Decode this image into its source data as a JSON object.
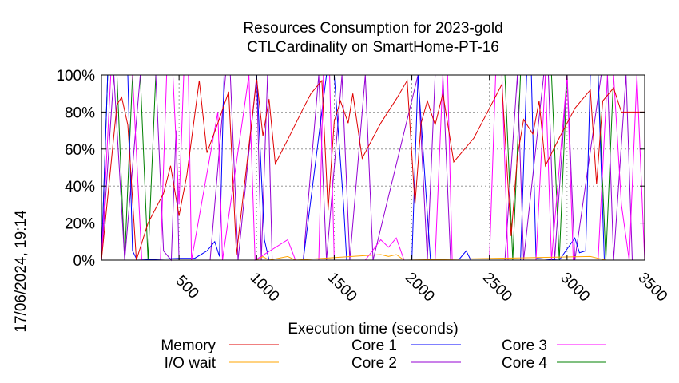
{
  "side_label": "17/06/2024, 19:14",
  "chart_data": {
    "type": "line",
    "title": [
      "Resources Consumption for 2023-gold",
      "CTLCardinality on SmartHome-PT-16"
    ],
    "xlabel": "Execution time (seconds)",
    "ylabel": "",
    "xlim": [
      0,
      3500
    ],
    "ylim": [
      0,
      100
    ],
    "x_ticks": [
      500,
      1000,
      1500,
      2000,
      2500,
      3000,
      3500
    ],
    "y_ticks": [
      0,
      20,
      40,
      60,
      80,
      100
    ],
    "y_tick_labels": [
      "0%",
      "20%",
      "40%",
      "60%",
      "80%",
      "100%"
    ],
    "grid": true,
    "legend_position": "bottom",
    "series": [
      {
        "name": "Memory",
        "color": "#e00000",
        "points": [
          [
            0,
            0
          ],
          [
            100,
            84
          ],
          [
            130,
            88
          ],
          [
            170,
            73
          ],
          [
            225,
            0
          ],
          [
            300,
            20
          ],
          [
            400,
            36
          ],
          [
            445,
            51
          ],
          [
            500,
            24
          ],
          [
            550,
            46
          ],
          [
            630,
            97
          ],
          [
            680,
            58
          ],
          [
            750,
            74
          ],
          [
            820,
            91
          ],
          [
            870,
            3
          ],
          [
            1000,
            98
          ],
          [
            1040,
            67
          ],
          [
            1080,
            87
          ],
          [
            1120,
            52
          ],
          [
            1200,
            65
          ],
          [
            1300,
            82
          ],
          [
            1350,
            90
          ],
          [
            1420,
            97
          ],
          [
            1460,
            27
          ],
          [
            1500,
            75
          ],
          [
            1540,
            86
          ],
          [
            1590,
            74
          ],
          [
            1620,
            90
          ],
          [
            1680,
            55
          ],
          [
            1800,
            74
          ],
          [
            1900,
            87
          ],
          [
            1970,
            97
          ],
          [
            2020,
            30
          ],
          [
            2060,
            74
          ],
          [
            2100,
            86
          ],
          [
            2150,
            73
          ],
          [
            2200,
            90
          ],
          [
            2270,
            53
          ],
          [
            2400,
            66
          ],
          [
            2500,
            82
          ],
          [
            2580,
            95
          ],
          [
            2640,
            13
          ],
          [
            2680,
            56
          ],
          [
            2720,
            76
          ],
          [
            2780,
            68
          ],
          [
            2820,
            86
          ],
          [
            2860,
            51
          ],
          [
            2950,
            66
          ],
          [
            3050,
            82
          ],
          [
            3150,
            92
          ],
          [
            3190,
            41
          ],
          [
            3230,
            86
          ],
          [
            3300,
            93
          ],
          [
            3350,
            80
          ],
          [
            3500,
            80
          ]
        ]
      },
      {
        "name": "I/O wait",
        "color": "#ffa500",
        "points": [
          [
            0,
            0
          ],
          [
            1000,
            0
          ],
          [
            1040,
            2
          ],
          [
            1080,
            0
          ],
          [
            1200,
            2
          ],
          [
            1250,
            0
          ],
          [
            1800,
            3
          ],
          [
            1850,
            2
          ],
          [
            1900,
            3
          ],
          [
            1950,
            0
          ],
          [
            3150,
            2
          ],
          [
            3200,
            1
          ],
          [
            3250,
            0
          ],
          [
            3500,
            0
          ]
        ]
      },
      {
        "name": "Core 1",
        "color": "#0000ff",
        "points": [
          [
            0,
            0
          ],
          [
            40,
            100
          ],
          [
            170,
            100
          ],
          [
            200,
            5
          ],
          [
            230,
            0
          ],
          [
            500,
            1
          ],
          [
            600,
            1
          ],
          [
            680,
            5
          ],
          [
            730,
            10
          ],
          [
            760,
            2
          ],
          [
            790,
            100
          ],
          [
            1000,
            100
          ],
          [
            1050,
            11
          ],
          [
            1080,
            0
          ],
          [
            1300,
            0
          ],
          [
            1450,
            100
          ],
          [
            1500,
            100
          ],
          [
            1560,
            30
          ],
          [
            1580,
            0
          ],
          [
            2000,
            0
          ],
          [
            2040,
            100
          ],
          [
            2120,
            0
          ],
          [
            2300,
            0
          ],
          [
            2350,
            5
          ],
          [
            2380,
            0
          ],
          [
            2700,
            0
          ],
          [
            2740,
            100
          ],
          [
            2770,
            100
          ],
          [
            2800,
            1
          ],
          [
            2950,
            0
          ],
          [
            3050,
            12
          ],
          [
            3080,
            4
          ],
          [
            3120,
            5
          ],
          [
            3150,
            100
          ],
          [
            3200,
            100
          ],
          [
            3240,
            0
          ],
          [
            3500,
            0
          ]
        ]
      },
      {
        "name": "Core 2",
        "color": "#9400d3",
        "points": [
          [
            0,
            0
          ],
          [
            80,
            100
          ],
          [
            150,
            0
          ],
          [
            250,
            100
          ],
          [
            350,
            100
          ],
          [
            400,
            5
          ],
          [
            450,
            0
          ],
          [
            480,
            70
          ],
          [
            500,
            0
          ],
          [
            700,
            0
          ],
          [
            800,
            100
          ],
          [
            830,
            100
          ],
          [
            880,
            0
          ],
          [
            1000,
            100
          ],
          [
            1030,
            0
          ],
          [
            1070,
            100
          ],
          [
            1100,
            0
          ],
          [
            1300,
            0
          ],
          [
            1400,
            100
          ],
          [
            1450,
            0
          ],
          [
            1550,
            100
          ],
          [
            1600,
            0
          ],
          [
            1700,
            100
          ],
          [
            1750,
            0
          ],
          [
            2040,
            100
          ],
          [
            2100,
            0
          ],
          [
            2150,
            100
          ],
          [
            2200,
            100
          ],
          [
            2250,
            0
          ],
          [
            2600,
            0
          ],
          [
            2680,
            100
          ],
          [
            2720,
            0
          ],
          [
            2850,
            100
          ],
          [
            2880,
            100
          ],
          [
            2920,
            0
          ],
          [
            3000,
            100
          ],
          [
            3050,
            0
          ],
          [
            3220,
            100
          ],
          [
            3260,
            100
          ],
          [
            3300,
            0
          ],
          [
            3380,
            100
          ],
          [
            3420,
            0
          ],
          [
            3500,
            0
          ]
        ]
      },
      {
        "name": "Core 3",
        "color": "#ff00ff",
        "points": [
          [
            0,
            0
          ],
          [
            60,
            100
          ],
          [
            200,
            100
          ],
          [
            260,
            0
          ],
          [
            380,
            0
          ],
          [
            420,
            100
          ],
          [
            460,
            100
          ],
          [
            500,
            30
          ],
          [
            530,
            100
          ],
          [
            560,
            100
          ],
          [
            580,
            0
          ],
          [
            750,
            80
          ],
          [
            780,
            0
          ],
          [
            950,
            100
          ],
          [
            990,
            0
          ],
          [
            1200,
            11
          ],
          [
            1250,
            0
          ],
          [
            1400,
            0
          ],
          [
            1430,
            100
          ],
          [
            1470,
            100
          ],
          [
            1500,
            0
          ],
          [
            1700,
            0
          ],
          [
            1800,
            11
          ],
          [
            1850,
            7
          ],
          [
            1900,
            12
          ],
          [
            1950,
            0
          ],
          [
            2150,
            0
          ],
          [
            2200,
            100
          ],
          [
            2230,
            100
          ],
          [
            2260,
            0
          ],
          [
            2500,
            0
          ],
          [
            2540,
            100
          ],
          [
            2580,
            100
          ],
          [
            2620,
            0
          ],
          [
            2800,
            0
          ],
          [
            2860,
            100
          ],
          [
            2900,
            0
          ],
          [
            3000,
            100
          ],
          [
            3040,
            0
          ],
          [
            3200,
            0
          ],
          [
            3260,
            100
          ],
          [
            3300,
            100
          ],
          [
            3350,
            30
          ],
          [
            3400,
            0
          ],
          [
            3450,
            100
          ],
          [
            3500,
            0
          ]
        ]
      },
      {
        "name": "Core 4",
        "color": "#008000",
        "points": [
          [
            0,
            0
          ],
          [
            40,
            100
          ],
          [
            100,
            100
          ],
          [
            150,
            0
          ],
          [
            200,
            100
          ],
          [
            250,
            100
          ],
          [
            300,
            0
          ],
          [
            350,
            100
          ],
          [
            500,
            100
          ],
          [
            550,
            100
          ],
          [
            600,
            100
          ],
          [
            800,
            100
          ],
          [
            1000,
            100
          ],
          [
            1500,
            100
          ],
          [
            2000,
            100
          ],
          [
            2400,
            100
          ],
          [
            2600,
            100
          ],
          [
            2650,
            0
          ],
          [
            2700,
            100
          ],
          [
            2900,
            100
          ],
          [
            2950,
            0
          ],
          [
            3000,
            100
          ],
          [
            3200,
            100
          ],
          [
            3250,
            0
          ],
          [
            3300,
            100
          ],
          [
            3500,
            100
          ]
        ]
      }
    ]
  }
}
